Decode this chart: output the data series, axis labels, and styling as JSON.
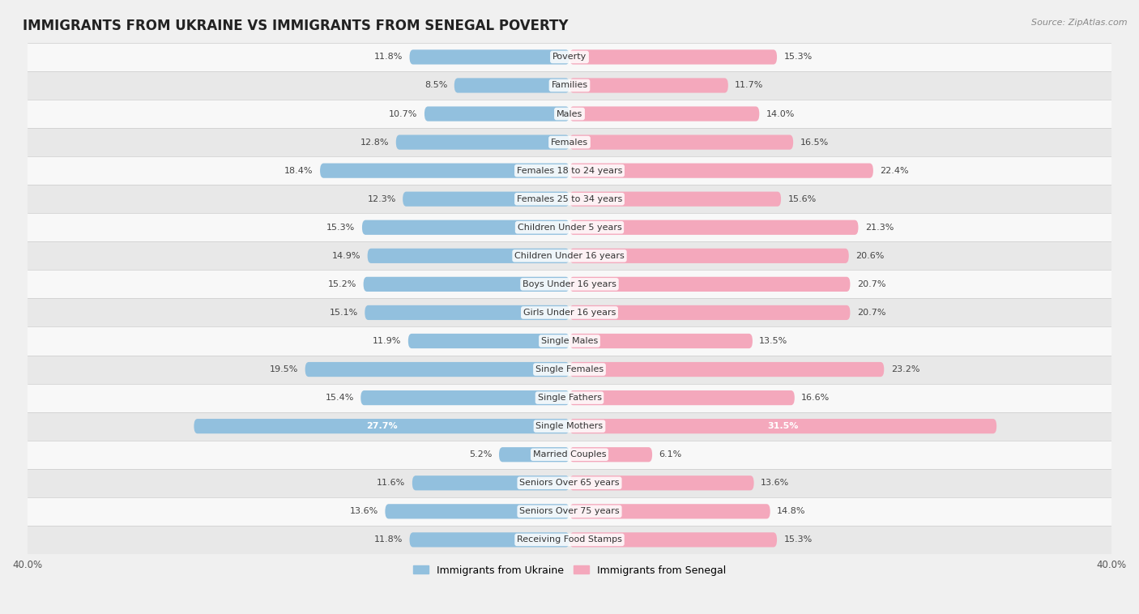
{
  "title": "IMMIGRANTS FROM UKRAINE VS IMMIGRANTS FROM SENEGAL POVERTY",
  "source": "Source: ZipAtlas.com",
  "categories": [
    "Poverty",
    "Families",
    "Males",
    "Females",
    "Females 18 to 24 years",
    "Females 25 to 34 years",
    "Children Under 5 years",
    "Children Under 16 years",
    "Boys Under 16 years",
    "Girls Under 16 years",
    "Single Males",
    "Single Females",
    "Single Fathers",
    "Single Mothers",
    "Married Couples",
    "Seniors Over 65 years",
    "Seniors Over 75 years",
    "Receiving Food Stamps"
  ],
  "ukraine_values": [
    11.8,
    8.5,
    10.7,
    12.8,
    18.4,
    12.3,
    15.3,
    14.9,
    15.2,
    15.1,
    11.9,
    19.5,
    15.4,
    27.7,
    5.2,
    11.6,
    13.6,
    11.8
  ],
  "senegal_values": [
    15.3,
    11.7,
    14.0,
    16.5,
    22.4,
    15.6,
    21.3,
    20.6,
    20.7,
    20.7,
    13.5,
    23.2,
    16.6,
    31.5,
    6.1,
    13.6,
    14.8,
    15.3
  ],
  "ukraine_color": "#92c0de",
  "senegal_color": "#f4a8bc",
  "ukraine_label": "Immigrants from Ukraine",
  "senegal_label": "Immigrants from Senegal",
  "xlim": 40.0,
  "background_color": "#f0f0f0",
  "row_color_even": "#f8f8f8",
  "row_color_odd": "#e8e8e8",
  "title_fontsize": 12,
  "source_fontsize": 8,
  "label_fontsize": 8,
  "value_fontsize": 8
}
